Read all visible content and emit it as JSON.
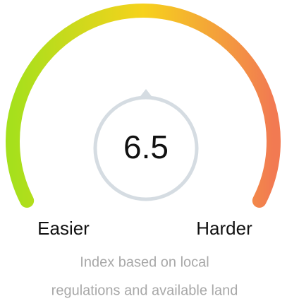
{
  "chart_data": {
    "type": "gauge",
    "value": 6.5,
    "ylim": [
      0,
      13
    ],
    "min_label": "Easier",
    "max_label": "Harder",
    "subtitle_lines": [
      "Index based on local",
      "regulations and available land"
    ],
    "colors": [
      "#a6e01c",
      "#f6d21c",
      "#f27a52"
    ]
  }
}
